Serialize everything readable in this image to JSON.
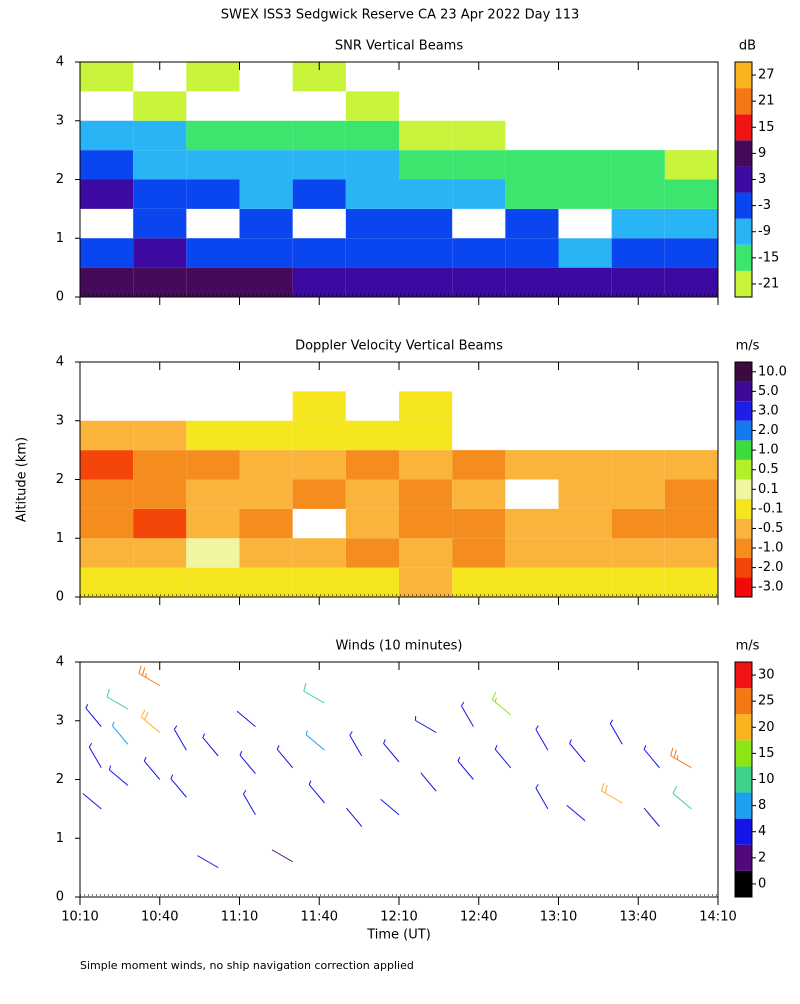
{
  "title": "SWEX ISS3 Sedgwick Reserve CA  23 Apr 2022 Day 113",
  "footnote": "Simple moment winds, no ship navigation correction applied",
  "chart_data": [
    {
      "type": "heatmap",
      "title": "SNR Vertical Beams",
      "ylim": [
        0,
        4
      ],
      "yticks": [
        0,
        1,
        2,
        3,
        4
      ],
      "xlim": [
        610,
        850
      ],
      "xticks": [
        {
          "value": 610,
          "label": "10:10"
        },
        {
          "value": 640,
          "label": "10:40"
        },
        {
          "value": 670,
          "label": "11:10"
        },
        {
          "value": 700,
          "label": "11:40"
        },
        {
          "value": 730,
          "label": "12:10"
        },
        {
          "value": 760,
          "label": "12:40"
        },
        {
          "value": 790,
          "label": "13:10"
        },
        {
          "value": 820,
          "label": "13:40"
        },
        {
          "value": 850,
          "label": "14:10"
        }
      ],
      "colorbar": {
        "label": "dB",
        "ticks": [
          -21,
          -15,
          -9,
          -3,
          3,
          9,
          15,
          21,
          27
        ],
        "colors": [
          "#c8f53c",
          "#3ce66e",
          "#28b4f5",
          "#0a46f0",
          "#3c0aa0",
          "#460a5a",
          "#f01414",
          "#f57814",
          "#fab41e"
        ]
      },
      "x": [
        620,
        640,
        660,
        680,
        700,
        720,
        740,
        760,
        780,
        800,
        820,
        840
      ],
      "y": [
        0.25,
        0.75,
        1.25,
        1.75,
        2.25,
        2.75,
        3.25,
        3.75
      ],
      "z": [
        [
          9,
          9,
          9,
          9,
          3,
          3,
          3,
          3,
          3,
          3,
          3,
          3
        ],
        [
          -3,
          3,
          -3,
          -3,
          -3,
          -3,
          -3,
          -3,
          -3,
          -9,
          -3,
          -3
        ],
        [
          null,
          -3,
          null,
          -3,
          null,
          -3,
          -3,
          null,
          -3,
          null,
          -9,
          -9
        ],
        [
          3,
          -3,
          -3,
          -9,
          -3,
          -9,
          -9,
          -9,
          -15,
          -15,
          -15,
          -15
        ],
        [
          -3,
          -9,
          -9,
          -9,
          -9,
          -9,
          -15,
          -15,
          -15,
          -15,
          -15,
          -21
        ],
        [
          -9,
          -9,
          -15,
          -15,
          -15,
          -15,
          -21,
          -21,
          null,
          null,
          null,
          null
        ],
        [
          null,
          -21,
          null,
          null,
          null,
          -21,
          null,
          null,
          null,
          null,
          null,
          null
        ],
        [
          -21,
          null,
          -21,
          null,
          -21,
          null,
          null,
          null,
          null,
          null,
          null,
          null
        ]
      ]
    },
    {
      "type": "heatmap",
      "title": "Doppler Velocity Vertical Beams",
      "ylabel": "Altitude (km)",
      "ylim": [
        0,
        4
      ],
      "yticks": [
        0,
        1,
        2,
        3,
        4
      ],
      "xlim": [
        610,
        850
      ],
      "xticks": [
        {
          "value": 610,
          "label": "10:10"
        },
        {
          "value": 640,
          "label": "10:40"
        },
        {
          "value": 670,
          "label": "11:10"
        },
        {
          "value": 700,
          "label": "11:40"
        },
        {
          "value": 730,
          "label": "12:10"
        },
        {
          "value": 760,
          "label": "12:40"
        },
        {
          "value": 790,
          "label": "13:10"
        },
        {
          "value": 820,
          "label": "13:40"
        },
        {
          "value": 850,
          "label": "14:10"
        }
      ],
      "colorbar": {
        "label": "m/s",
        "ticks": [
          {
            "value": -3,
            "label": "-3.0"
          },
          {
            "value": -2,
            "label": "-2.0"
          },
          {
            "value": -1,
            "label": "-1.0"
          },
          -0.5,
          -0.1,
          0.1,
          0.5,
          {
            "value": 1,
            "label": "1.0"
          },
          {
            "value": 2,
            "label": "2.0"
          },
          {
            "value": 3,
            "label": "3.0"
          },
          {
            "value": 5,
            "label": "5.0"
          },
          {
            "value": 10,
            "label": "10.0"
          }
        ],
        "colors": [
          "#f00a0a",
          "#f5460a",
          "#f58c1e",
          "#fab43c",
          "#f5e61e",
          "#f0f5a0",
          "#b4f028",
          "#3cdc3c",
          "#1478f0",
          "#1e1ee6",
          "#3c0a96",
          "#3c0a3c"
        ]
      },
      "x": [
        620,
        640,
        660,
        680,
        700,
        720,
        740,
        760,
        780,
        800,
        820,
        840
      ],
      "y": [
        0.25,
        0.75,
        1.25,
        1.75,
        2.25,
        2.75,
        3.25,
        3.75
      ],
      "z": [
        [
          -0.1,
          -0.1,
          -0.1,
          -0.1,
          -0.1,
          -0.1,
          -0.5,
          -0.1,
          -0.1,
          -0.1,
          -0.1,
          -0.1
        ],
        [
          -0.5,
          -0.5,
          0.1,
          -0.5,
          -0.5,
          -1,
          -0.5,
          -1,
          -0.5,
          -0.5,
          -0.5,
          -0.5
        ],
        [
          -1,
          -2,
          -0.5,
          -1,
          null,
          -0.5,
          -1,
          -1,
          -0.5,
          -0.5,
          -1,
          -1
        ],
        [
          -1,
          -1,
          -0.5,
          -0.5,
          -1,
          -0.5,
          -1,
          -0.5,
          null,
          -0.5,
          -0.5,
          -1
        ],
        [
          -2,
          -1,
          -1,
          -0.5,
          -0.5,
          -1,
          -0.5,
          -1,
          -0.5,
          -0.5,
          -0.5,
          -0.5
        ],
        [
          -0.5,
          -0.5,
          -0.1,
          -0.1,
          -0.1,
          -0.1,
          -0.1,
          null,
          null,
          null,
          null,
          null
        ],
        [
          null,
          null,
          null,
          null,
          -0.1,
          null,
          -0.1,
          null,
          null,
          null,
          null,
          null
        ],
        [
          null,
          null,
          null,
          null,
          null,
          null,
          null,
          null,
          null,
          null,
          null,
          null
        ]
      ]
    },
    {
      "type": "barbs",
      "title": "Winds (10 minutes)",
      "xlabel": "Time (UT)",
      "ylim": [
        0,
        4
      ],
      "yticks": [
        0,
        1,
        2,
        3,
        4
      ],
      "xlim": [
        610,
        850
      ],
      "xticks": [
        {
          "value": 610,
          "label": "10:10"
        },
        {
          "value": 640,
          "label": "10:40"
        },
        {
          "value": 670,
          "label": "11:10"
        },
        {
          "value": 700,
          "label": "11:40"
        },
        {
          "value": 730,
          "label": "12:10"
        },
        {
          "value": 760,
          "label": "12:40"
        },
        {
          "value": 790,
          "label": "13:10"
        },
        {
          "value": 820,
          "label": "13:40"
        },
        {
          "value": 850,
          "label": "14:10"
        }
      ],
      "colorbar": {
        "label": "m/s",
        "ticks": [
          0,
          2,
          4,
          8,
          10,
          15,
          20,
          25,
          30
        ],
        "colors": [
          "#000000",
          "#50087a",
          "#1414e6",
          "#1ea0f0",
          "#3cd28c",
          "#8ce614",
          "#fab41e",
          "#f57814",
          "#f01414"
        ]
      },
      "x": [
        618,
        618,
        618,
        628,
        628,
        628,
        640,
        640,
        640,
        650,
        650,
        662,
        662,
        676,
        676,
        676,
        690,
        690,
        702,
        702,
        702,
        716,
        716,
        730,
        730,
        744,
        744,
        758,
        758,
        772,
        772,
        786,
        786,
        800,
        800,
        814,
        814,
        828,
        828,
        840,
        840
      ],
      "y": [
        2.9,
        2.2,
        1.5,
        3.2,
        2.6,
        1.9,
        3.6,
        2.8,
        2.0,
        2.5,
        1.7,
        2.4,
        0.5,
        2.9,
        2.1,
        1.4,
        2.2,
        0.6,
        3.3,
        2.5,
        1.6,
        2.4,
        1.2,
        2.3,
        1.4,
        2.8,
        1.8,
        2.9,
        2.0,
        3.1,
        2.2,
        2.5,
        1.5,
        2.3,
        1.3,
        2.6,
        1.6,
        2.2,
        1.2,
        2.2,
        1.5
      ],
      "speed": [
        5,
        5,
        4,
        12,
        9,
        7,
        25,
        20,
        6,
        6,
        5,
        5,
        4,
        4,
        5,
        5,
        5,
        3,
        12,
        9,
        6,
        5,
        4,
        5,
        4,
        7,
        4,
        5,
        5,
        15,
        5,
        6,
        5,
        5,
        4,
        6,
        20,
        5,
        4,
        25,
        10
      ],
      "direction": [
        320,
        330,
        310,
        300,
        320,
        310,
        300,
        310,
        320,
        330,
        320,
        320,
        300,
        310,
        320,
        330,
        320,
        300,
        300,
        310,
        320,
        330,
        320,
        320,
        310,
        300,
        320,
        330,
        320,
        310,
        320,
        330,
        330,
        320,
        310,
        330,
        300,
        320,
        320,
        300,
        310
      ]
    }
  ]
}
